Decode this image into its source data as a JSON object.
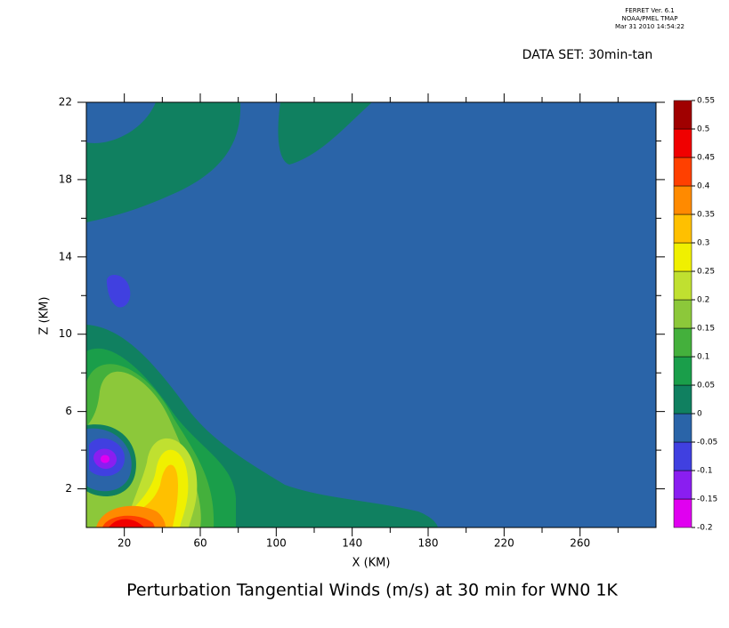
{
  "chart_data": {
    "type": "contour",
    "header": [
      "FERRET Ver. 6.1",
      "NOAA/PMEL TMAP",
      "Mar 31 2010 14:54:22"
    ],
    "dataset": "DATA SET: 30min-tan",
    "title": "Perturbation Tangential Winds (m/s) at 30 min for WN0 1K",
    "xlabel": "X (KM)",
    "ylabel": "Z (KM)",
    "xlim": [
      0,
      300
    ],
    "xticks": [
      20,
      60,
      100,
      140,
      180,
      220,
      260
    ],
    "ylim": [
      0,
      22
    ],
    "yticks": [
      2,
      6,
      10,
      14,
      18,
      22
    ],
    "levels": [
      -0.2,
      -0.15,
      -0.1,
      -0.05,
      0,
      0.05,
      0.1,
      0.15,
      0.2,
      0.25,
      0.3,
      0.35,
      0.4,
      0.45,
      0.5,
      0.55
    ],
    "colors": [
      "#e000f0",
      "#8a1ef0",
      "#4040e0",
      "#2a64a8",
      "#108060",
      "#1a9e4a",
      "#44b03c",
      "#8cc83a",
      "#c0e030",
      "#f0f000",
      "#ffc000",
      "#ff8a00",
      "#ff4000",
      "#f00000",
      "#a00000"
    ]
  }
}
